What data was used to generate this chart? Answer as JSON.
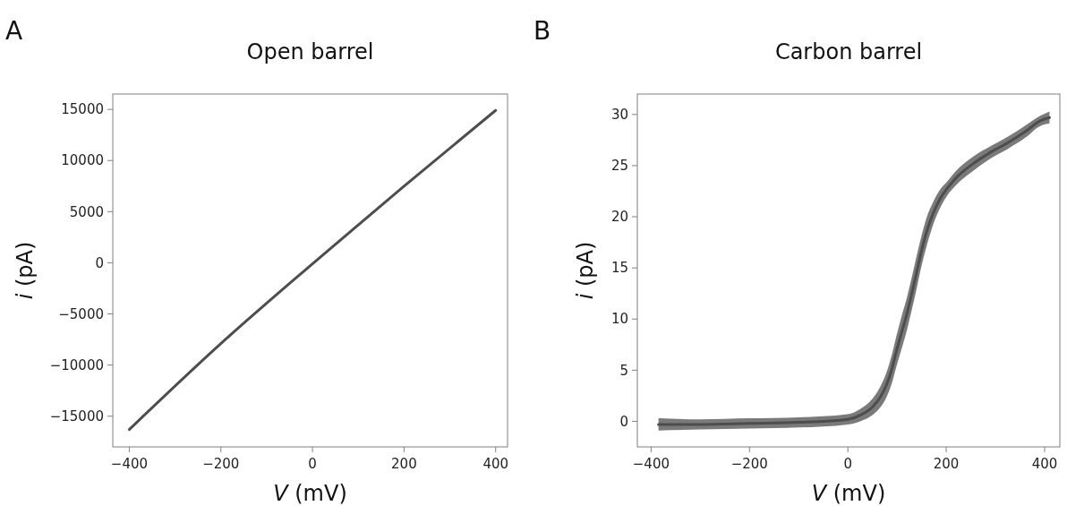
{
  "chart_data": [
    {
      "type": "line",
      "title": "Open barrel",
      "xlabel": "V (mV)",
      "ylabel": "i (pA)",
      "annotations": [
        "A"
      ],
      "xlim": [
        -436,
        426
      ],
      "ylim": [
        -18000,
        16500
      ],
      "xticks": [
        -400,
        -200,
        0,
        200,
        400
      ],
      "yticks": [
        -15000,
        -10000,
        -5000,
        0,
        5000,
        10000,
        15000
      ],
      "series": [
        {
          "color": "#4d4d4d",
          "x": [
            -400,
            -200,
            0,
            200,
            400
          ],
          "values": [
            -16300,
            -7900,
            -100,
            7500,
            14900
          ]
        }
      ]
    },
    {
      "type": "line",
      "title": "Carbon barrel",
      "xlabel": "V (mV)",
      "ylabel": "i (pA)",
      "annotations": [
        "B"
      ],
      "xlim": [
        -428,
        431
      ],
      "ylim": [
        -2.5,
        32
      ],
      "xticks": [
        -400,
        -200,
        0,
        200,
        400
      ],
      "yticks": [
        0,
        5,
        10,
        15,
        20,
        25,
        30
      ],
      "series": [
        {
          "color": "#4d4d4d",
          "x": [
            -385,
            -300,
            -200,
            -100,
            0,
            25,
            50,
            65,
            78,
            90,
            99,
            110,
            119,
            130,
            140,
            147,
            160,
            174,
            188,
            201,
            220,
            255,
            290,
            324,
            360,
            392,
            410
          ],
          "values": [
            -0.3,
            -0.3,
            -0.2,
            -0.1,
            0.2,
            0.6,
            1.4,
            2.3,
            3.5,
            5.2,
            6.9,
            8.8,
            10.3,
            12.5,
            14.6,
            16.1,
            18.5,
            20.4,
            21.8,
            22.7,
            23.8,
            25.2,
            26.3,
            27.2,
            28.3,
            29.4,
            29.7
          ],
          "lower": [
            -0.9,
            -0.8,
            -0.7,
            -0.6,
            -0.3,
            0.0,
            0.6,
            1.3,
            2.3,
            3.8,
            5.4,
            7.2,
            8.7,
            10.9,
            13.0,
            14.6,
            17.1,
            19.3,
            20.9,
            22.0,
            23.1,
            24.5,
            25.7,
            26.6,
            27.7,
            28.9,
            29.1
          ],
          "upper": [
            0.3,
            0.2,
            0.3,
            0.4,
            0.7,
            1.2,
            2.2,
            3.3,
            4.7,
            6.6,
            8.4,
            10.4,
            11.9,
            14.1,
            16.2,
            17.6,
            19.9,
            21.5,
            22.7,
            23.4,
            24.5,
            25.9,
            26.9,
            27.8,
            28.9,
            29.9,
            30.3
          ]
        }
      ]
    }
  ]
}
